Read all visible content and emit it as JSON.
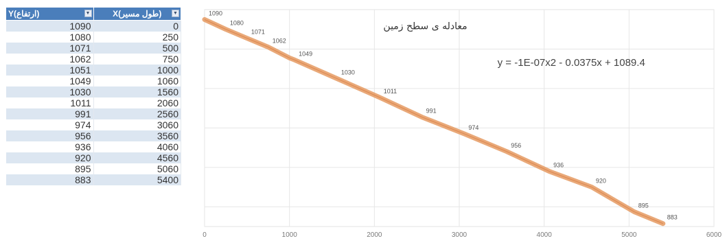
{
  "table": {
    "headers": [
      {
        "col": "Y",
        "label": "(ارتفاع)Y"
      },
      {
        "col": "X",
        "label": "(طول مسیر)X"
      }
    ],
    "rows": [
      {
        "y": "1090",
        "x": "0"
      },
      {
        "y": "1080",
        "x": "250"
      },
      {
        "y": "1071",
        "x": "500"
      },
      {
        "y": "1062",
        "x": "750"
      },
      {
        "y": "1051",
        "x": "1000"
      },
      {
        "y": "1049",
        "x": "1060"
      },
      {
        "y": "1030",
        "x": "1560"
      },
      {
        "y": "1011",
        "x": "2060"
      },
      {
        "y": "991",
        "x": "2560"
      },
      {
        "y": "974",
        "x": "3060"
      },
      {
        "y": "956",
        "x": "3560"
      },
      {
        "y": "936",
        "x": "4060"
      },
      {
        "y": "920",
        "x": "4560"
      },
      {
        "y": "895",
        "x": "5060"
      },
      {
        "y": "883",
        "x": "5400"
      }
    ]
  },
  "chart_data": {
    "type": "line",
    "title": "معادله ی سطح زمین",
    "trendline_equation": "y = -1E-07x2 - 0.0375x + 1089.4",
    "xlim": [
      0,
      6000
    ],
    "ylim": [
      880,
      1100
    ],
    "xticks": [
      "0",
      "1000",
      "2000",
      "3000",
      "4000",
      "5000",
      "6000"
    ],
    "grid": true,
    "x": [
      0,
      250,
      500,
      750,
      1000,
      1060,
      1560,
      2060,
      2560,
      3060,
      3560,
      4060,
      4560,
      5060,
      5400
    ],
    "series": [
      {
        "values": [
          1090,
          1080,
          1071,
          1062,
          1051,
          1049,
          1030,
          1011,
          991,
          974,
          956,
          936,
          920,
          895,
          883
        ],
        "data_labels": [
          "1090",
          "1080",
          "1071",
          "1062",
          "1049",
          "1030",
          "1011",
          "991",
          "974",
          "956",
          "936",
          "920",
          "895",
          "883"
        ],
        "label_x": [
          0,
          250,
          500,
          750,
          1060,
          1560,
          2060,
          2560,
          3060,
          3560,
          4060,
          4560,
          5060,
          5400
        ],
        "color": "#e59a62"
      }
    ]
  }
}
